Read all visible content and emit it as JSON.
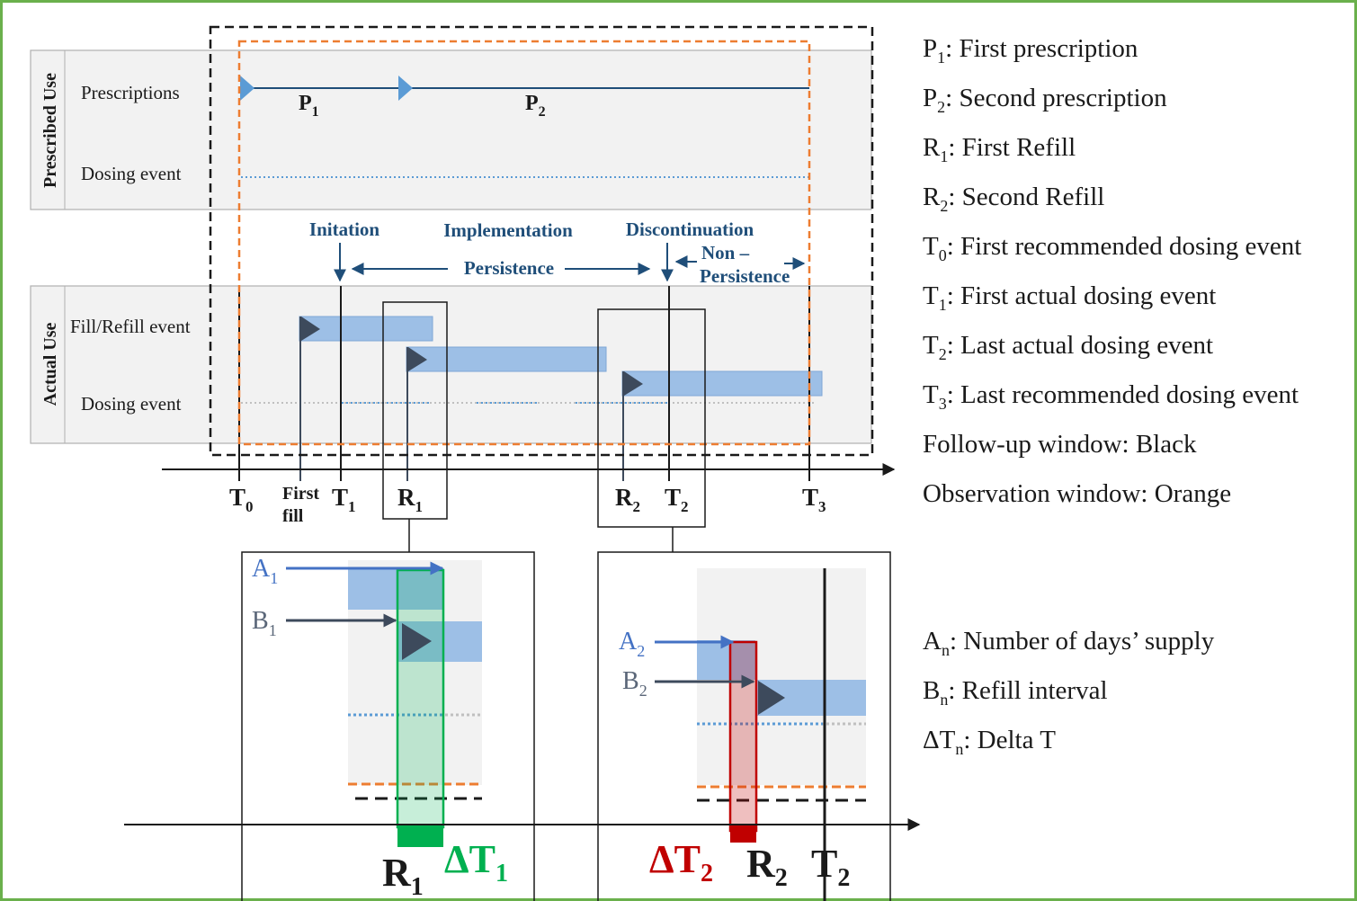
{
  "colors": {
    "frame": "#6ab04c",
    "bar_blue": "#9dbfe6",
    "arrow_dark": "#3d4a5c",
    "navy_text": "#1f4e79",
    "orange_window": "#ed7d31",
    "panel_grey": "#f2f2f2",
    "delta1_green": "#00b050",
    "delta2_red": "#c00000",
    "a_blue": "#4472c4"
  },
  "panels": {
    "prescribed_use": "Prescribed Use",
    "actual_use": "Actual Use"
  },
  "row_labels": {
    "prescriptions": "Prescriptions",
    "dosing_event_prescribed": "Dosing event",
    "fill_refill": "Fill/Refill event",
    "dosing_event_actual": "Dosing event"
  },
  "prescriptions": {
    "p1": "P",
    "p1_sub": "1",
    "p2": "P",
    "p2_sub": "2"
  },
  "phases": {
    "initiation": "Initation",
    "implementation": "Implementation",
    "discontinuation": "Discontinuation",
    "persistence": "Persistence",
    "non_persistence_1": "Non –",
    "non_persistence_2": "Persistence"
  },
  "axis_labels": {
    "t0": "T",
    "t0_sub": "0",
    "first_fill_1": "First",
    "first_fill_2": "fill",
    "t1": "T",
    "t1_sub": "1",
    "r1": "R",
    "r1_sub": "1",
    "r2": "R",
    "r2_sub": "2",
    "t2": "T",
    "t2_sub": "2",
    "t3": "T",
    "t3_sub": "3"
  },
  "zoom_left": {
    "a": "A",
    "a_sub": "1",
    "b": "B",
    "b_sub": "1",
    "r": "R",
    "r_sub": "1",
    "delta": "ΔT",
    "delta_sub": "1"
  },
  "zoom_right": {
    "a": "A",
    "a_sub": "2",
    "b": "B",
    "b_sub": "2",
    "delta": "ΔT",
    "delta_sub": "2",
    "r": "R",
    "r_sub": "2",
    "t": "T",
    "t_sub": "2"
  },
  "legend": [
    {
      "sym": "P",
      "sub": "1",
      "text": ": First prescription"
    },
    {
      "sym": "P",
      "sub": "2",
      "text": ": Second prescription"
    },
    {
      "sym": "R",
      "sub": "1",
      "text": ": First Refill"
    },
    {
      "sym": "R",
      "sub": "2",
      "text": ": Second Refill"
    },
    {
      "sym": "T",
      "sub": "0",
      "text": ": First recommended dosing event"
    },
    {
      "sym": "T",
      "sub": "1",
      "text": ": First actual dosing event"
    },
    {
      "sym": "T",
      "sub": "2",
      "text": ": Last actual dosing event"
    },
    {
      "sym": "T",
      "sub": "3",
      "text": ": Last recommended dosing event"
    },
    {
      "sym": "Follow-up window: Black",
      "sub": "",
      "text": ""
    },
    {
      "sym": "Observation window: Orange",
      "sub": "",
      "text": ""
    }
  ],
  "legend2": [
    {
      "sym": "A",
      "sub": "n",
      "text": ": Number of days’ supply"
    },
    {
      "sym": "B",
      "sub": "n",
      "text": ": Refill interval"
    },
    {
      "sym": "ΔT",
      "sub": "n",
      "text": ": Delta T"
    }
  ]
}
